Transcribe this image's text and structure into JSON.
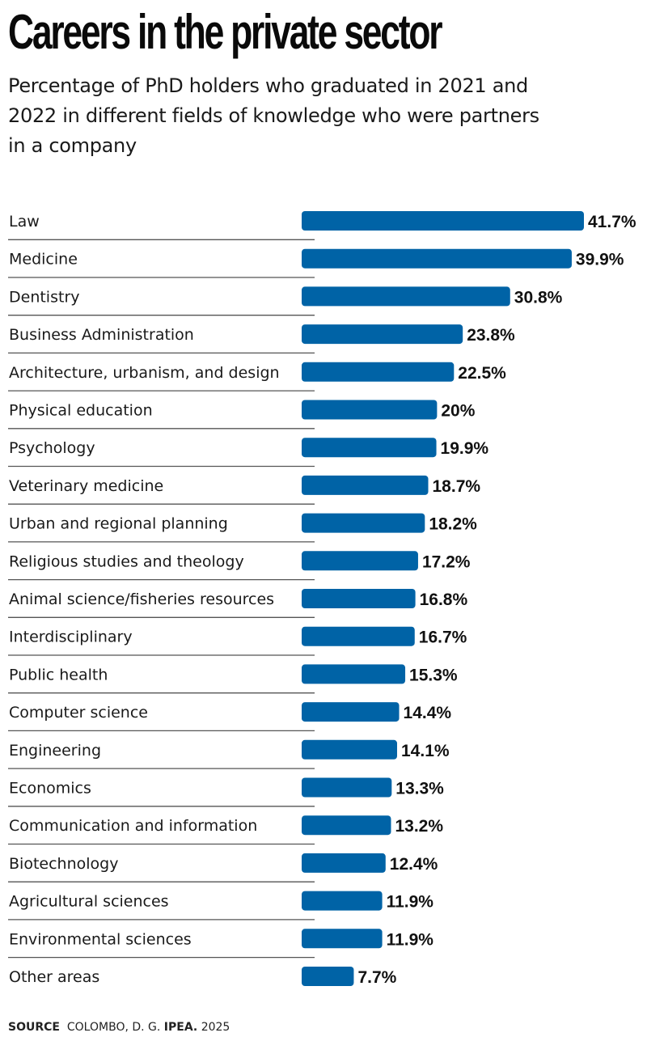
{
  "header": {
    "title": "Careers in the private sector",
    "subtitle": "Percentage of PhD holders who graduated in 2021 and 2022 in different fields of knowledge who were partners in a company"
  },
  "source": {
    "label": "SOURCE",
    "author": "COLOMBO, D. G.",
    "publisher": "IPEA.",
    "year": "2025"
  },
  "colors": {
    "bar": "#0063a6",
    "divider": "#555555",
    "text": "#111111"
  },
  "chart_data": {
    "type": "bar",
    "orientation": "horizontal",
    "title": "Careers in the private sector",
    "subtitle": "Percentage of PhD holders who graduated in 2021 and 2022 in different fields of knowledge who were partners in a company",
    "xlabel": "",
    "ylabel": "",
    "unit": "%",
    "xlim": [
      0,
      41.7
    ],
    "grid": false,
    "legend": "none",
    "categories": [
      "Law",
      "Medicine",
      "Dentistry",
      "Business Administration",
      "Architecture, urbanism, and design",
      "Physical education",
      "Psychology",
      "Veterinary medicine",
      "Urban and regional planning",
      "Religious studies and theology",
      "Animal science/fisheries resources",
      "Interdisciplinary",
      "Public health",
      "Computer science",
      "Engineering",
      "Economics",
      "Communication and information",
      "Biotechnology",
      "Agricultural sciences",
      "Environmental sciences",
      "Other areas"
    ],
    "values": [
      41.7,
      39.9,
      30.8,
      23.8,
      22.5,
      20,
      19.9,
      18.7,
      18.2,
      17.2,
      16.8,
      16.7,
      15.3,
      14.4,
      14.1,
      13.3,
      13.2,
      12.4,
      11.9,
      11.9,
      7.7
    ],
    "value_labels": [
      "41.7%",
      "39.9%",
      "30.8%",
      "23.8%",
      "22.5%",
      "20%",
      "19.9%",
      "18.7%",
      "18.2%",
      "17.2%",
      "16.8%",
      "16.7%",
      "15.3%",
      "14.4%",
      "14.1%",
      "13.3%",
      "13.2%",
      "12.4%",
      "11.9%",
      "11.9%",
      "7.7%"
    ]
  }
}
